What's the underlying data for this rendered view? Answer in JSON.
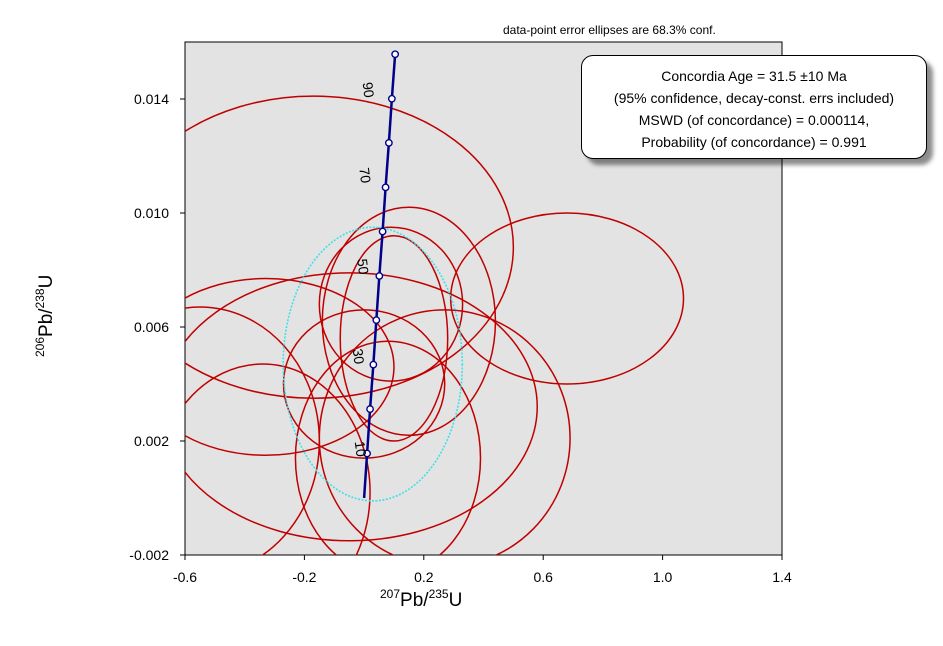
{
  "chart_data": {
    "type": "scatter",
    "subtype": "concordia-diagram",
    "note": "data-point error ellipses are 68.3% conf.",
    "xlabel": {
      "sup1": "207",
      "main1": "Pb/",
      "sup2": "235",
      "main2": "U"
    },
    "ylabel": {
      "sup1": "206",
      "main1": "Pb/",
      "sup2": "238",
      "main2": "U"
    },
    "xlim": [
      -0.6,
      1.4
    ],
    "ylim": [
      -0.002,
      0.016
    ],
    "x_ticks": [
      -0.6,
      -0.2,
      0.2,
      0.6,
      1.0,
      1.4
    ],
    "x_tick_labels": [
      "-0.6",
      "-0.2",
      "0.2",
      "0.6",
      "1.0",
      "1.4"
    ],
    "y_ticks": [
      -0.002,
      0.002,
      0.006,
      0.01,
      0.014
    ],
    "y_tick_labels": [
      "-0.002",
      "0.002",
      "0.006",
      "0.010",
      "0.014"
    ],
    "concordia": {
      "color": "#00008b",
      "points": [
        {
          "age": 0,
          "x": 0.0,
          "y": 0.0
        },
        {
          "age": 10,
          "x": 0.01,
          "y": 0.00156
        },
        {
          "age": 20,
          "x": 0.02,
          "y": 0.00312
        },
        {
          "age": 30,
          "x": 0.031,
          "y": 0.00468
        },
        {
          "age": 40,
          "x": 0.041,
          "y": 0.00624
        },
        {
          "age": 50,
          "x": 0.051,
          "y": 0.00779
        },
        {
          "age": 60,
          "x": 0.062,
          "y": 0.00935
        },
        {
          "age": 70,
          "x": 0.072,
          "y": 0.0109
        },
        {
          "age": 80,
          "x": 0.083,
          "y": 0.01246
        },
        {
          "age": 90,
          "x": 0.093,
          "y": 0.01401
        },
        {
          "age": 100,
          "x": 0.104,
          "y": 0.01557
        }
      ],
      "labeled_ages": [
        {
          "text": "10",
          "x": -0.028,
          "y": 0.0017
        },
        {
          "text": "30",
          "x": -0.035,
          "y": 0.00495
        },
        {
          "text": "50",
          "x": -0.02,
          "y": 0.0081
        },
        {
          "text": "70",
          "x": -0.013,
          "y": 0.0113
        },
        {
          "text": "90",
          "x": -0.002,
          "y": 0.0143
        }
      ]
    },
    "data_ellipses": {
      "color": "#c00000",
      "items": [
        {
          "cx": -0.17,
          "cy": 0.0088,
          "rx": 0.67,
          "ry": 0.0053
        },
        {
          "cx": 0.15,
          "cy": 0.0062,
          "rx": 0.29,
          "ry": 0.004
        },
        {
          "cx": 0.09,
          "cy": 0.0068,
          "rx": 0.24,
          "ry": 0.0027
        },
        {
          "cx": 0.1,
          "cy": 0.0056,
          "rx": 0.18,
          "ry": 0.0036
        },
        {
          "cx": 0.68,
          "cy": 0.007,
          "rx": 0.39,
          "ry": 0.003
        },
        {
          "cx": 0.27,
          "cy": 0.0021,
          "rx": 0.42,
          "ry": 0.0045
        },
        {
          "cx": 0.0,
          "cy": 0.004,
          "rx": 0.27,
          "ry": 0.0026
        },
        {
          "cx": -0.05,
          "cy": 0.0032,
          "rx": 0.63,
          "ry": 0.0047
        },
        {
          "cx": 0.08,
          "cy": 0.0014,
          "rx": 0.31,
          "ry": 0.0041
        },
        {
          "cx": -0.33,
          "cy": 0.0046,
          "rx": 0.43,
          "ry": 0.0031
        },
        {
          "cx": -0.34,
          "cy": 0.0002,
          "rx": 0.36,
          "ry": 0.0045
        },
        {
          "cx": -0.55,
          "cy": 0.002,
          "rx": 0.4,
          "ry": 0.0047
        }
      ]
    },
    "concordia_age_ellipse": {
      "cx": 0.029,
      "cy": 0.0047,
      "rx": 0.3,
      "ry": 0.0048,
      "color": "#40e0e8"
    }
  },
  "result_box": {
    "line1": "Concordia Age = 31.5 ±10 Ma",
    "line2": "(95% confidence, decay-const. errs included)",
    "line3": "MSWD (of concordance) = 0.000114,",
    "line4": "Probability  (of concordance) = 0.991"
  }
}
